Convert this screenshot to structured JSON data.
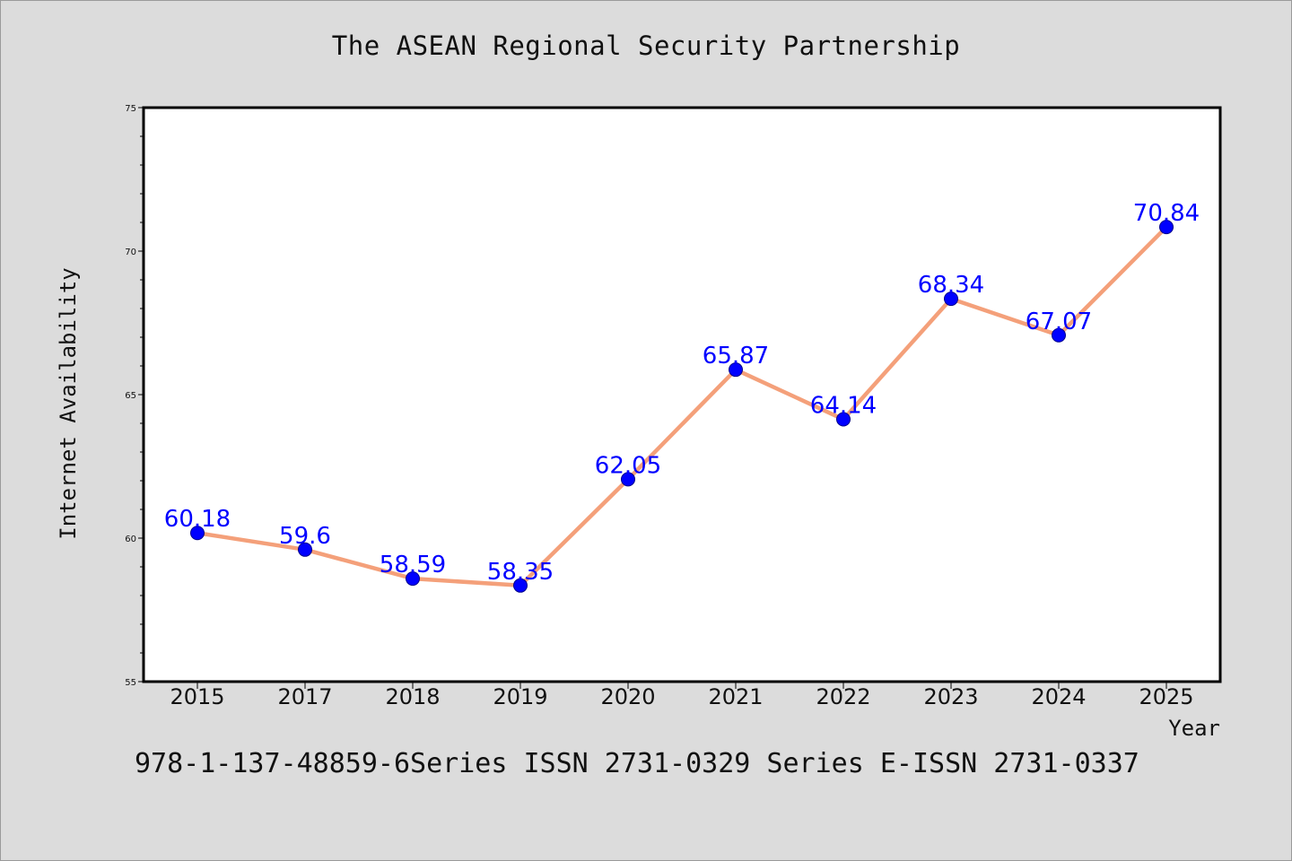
{
  "title": "The ASEAN Regional Security Partnership",
  "footer": "978-1-137-48859-6Series ISSN 2731-0329 Series E-ISSN 2731-0337",
  "colors": {
    "background": "#dcdcdc",
    "plot_background": "#ffffff",
    "line": "#f4a07a",
    "marker": "#0000ff",
    "data_label": "#0000ff"
  },
  "chart_data": {
    "type": "line",
    "categories": [
      "2015",
      "2017",
      "2018",
      "2019",
      "2020",
      "2021",
      "2022",
      "2023",
      "2024",
      "2025"
    ],
    "series": [
      {
        "values": [
          60.18,
          59.6,
          58.59,
          58.35,
          62.05,
          65.87,
          64.14,
          68.34,
          67.07,
          70.84
        ]
      }
    ],
    "data_labels": [
      "60.18",
      "59.6",
      "58.59",
      "58.35",
      "62.05",
      "65.87",
      "64.14",
      "68.34",
      "67.07",
      "70.84"
    ],
    "xlabel": "Year",
    "ylabel": "Internet Availability",
    "ylim": [
      55,
      75
    ],
    "yticks": [
      "55",
      "60",
      "65",
      "70",
      "75"
    ],
    "grid": false,
    "legend": "none"
  }
}
